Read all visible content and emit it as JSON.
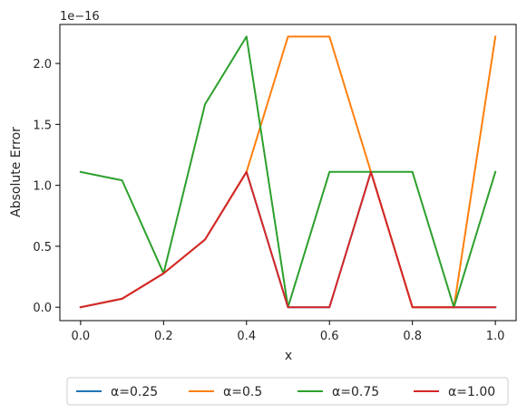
{
  "chart_data": {
    "type": "line",
    "title": "",
    "xlabel": "x",
    "ylabel": "Absolute Error",
    "offset_text": "1e−16",
    "xlim": [
      -0.05,
      1.05
    ],
    "ylim": [
      -0.11,
      2.32
    ],
    "xticks": [
      0.0,
      0.2,
      0.4,
      0.6,
      0.8,
      1.0
    ],
    "xtick_labels": [
      "0.0",
      "0.2",
      "0.4",
      "0.6",
      "0.8",
      "1.0"
    ],
    "yticks": [
      0.0,
      0.5,
      1.0,
      1.5,
      2.0
    ],
    "ytick_labels": [
      "0.0",
      "0.5",
      "1.0",
      "1.5",
      "2.0"
    ],
    "grid": false,
    "legend_position": "below",
    "x": [
      0.0,
      0.1,
      0.2,
      0.3,
      0.4,
      0.5,
      0.6,
      0.7,
      0.8,
      0.9,
      1.0
    ],
    "series": [
      {
        "name": "α=0.25",
        "color": "#1f77b4",
        "values": [
          0,
          0.0694,
          0.2776,
          0.5551,
          1.1102,
          0,
          0,
          1.1102,
          0,
          0,
          0
        ]
      },
      {
        "name": "α=0.5",
        "color": "#ff7f0e",
        "values": [
          0,
          0.0694,
          0.2776,
          0.5551,
          1.1102,
          2.2204,
          2.2204,
          1.1102,
          0,
          0,
          2.2204
        ]
      },
      {
        "name": "α=0.75",
        "color": "#2ca02c",
        "values": [
          1.1102,
          1.0408,
          0.2776,
          1.6653,
          2.2204,
          0,
          1.1102,
          1.1102,
          1.1102,
          0,
          1.1102
        ]
      },
      {
        "name": "α=1.00",
        "color": "#d62728",
        "values": [
          0,
          0.0694,
          0.2776,
          0.5551,
          1.1102,
          0,
          0,
          1.1102,
          0,
          0,
          0
        ]
      }
    ]
  }
}
